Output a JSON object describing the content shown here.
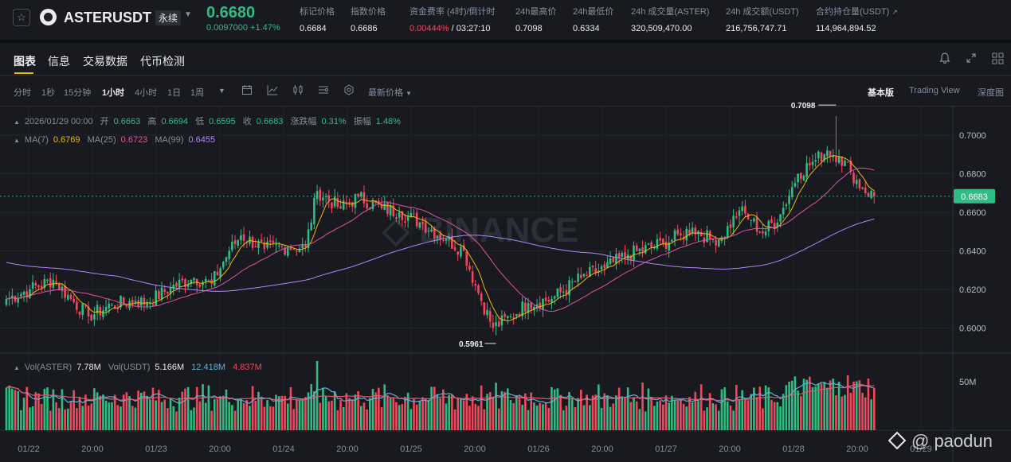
{
  "header": {
    "symbol": "ASTERUSDT",
    "contract_type": "永续",
    "last_price": "0.6680",
    "change": "0.0097000 +1.47%",
    "stats": [
      {
        "label": "标记价格",
        "value": "0.6684"
      },
      {
        "label": "指数价格",
        "value": "0.6686"
      },
      {
        "label": "资金费率 (4时)/倒计时",
        "value_red": "0.00444%",
        "value": " / 03:27:10"
      },
      {
        "label": "24h最高价",
        "value": "0.7098"
      },
      {
        "label": "24h最低价",
        "value": "0.6334"
      },
      {
        "label": "24h 成交量(ASTER)",
        "value": "320,509,470.00"
      },
      {
        "label": "24h 成交额(USDT)",
        "value": "216,756,747.71"
      },
      {
        "label": "合约持仓量(USDT)",
        "value": "114,964,894.52"
      }
    ]
  },
  "tabs": [
    "图表",
    "信息",
    "交易数据",
    "代币检测"
  ],
  "toolbar": {
    "intervals": [
      "分时",
      "1秒",
      "15分钟",
      "1小时",
      "4小时",
      "1日",
      "1周"
    ],
    "active_interval": "1小时",
    "price_type": "最新价格",
    "views": [
      "基本版",
      "Trading View",
      "深度图"
    ],
    "active_view": "基本版"
  },
  "legend": {
    "ohlc": {
      "time": "2026/01/29 00:00",
      "open_label": "开",
      "open": "0.6663",
      "high_label": "高",
      "high": "0.6694",
      "low_label": "低",
      "low": "0.6595",
      "close_label": "收",
      "close": "0.6683",
      "change_label": "涨跌幅",
      "change": "0.31%",
      "amp_label": "振幅",
      "amp": "1.48%"
    },
    "ma": [
      {
        "name": "MA(7)",
        "value": "0.6769",
        "color": "#f0b90b"
      },
      {
        "name": "MA(25)",
        "value": "0.6723",
        "color": "#e052a4"
      },
      {
        "name": "MA(99)",
        "value": "0.6455",
        "color": "#b086f8"
      }
    ],
    "vol": {
      "vol_aster_label": "Vol(ASTER)",
      "vol_aster": "7.78M",
      "vol_usdt_label": "Vol(USDT)",
      "vol_usdt": "5.166M",
      "vol_ma1": "12.418M",
      "vol_ma2": "4.837M"
    }
  },
  "chart_data": {
    "type": "candlestick",
    "interval": "1h",
    "price_axis": {
      "ticks": [
        "0.7000",
        "0.6800",
        "0.6600",
        "0.6400",
        "0.6200",
        "0.6000"
      ],
      "ylim": [
        0.587,
        0.7148
      ],
      "current_price": "0.6683"
    },
    "volume_axis": {
      "ticks": [
        "50M"
      ]
    },
    "time_axis": {
      "ticks": [
        "01/22",
        "20:00",
        "01/23",
        "20:00",
        "01/24",
        "20:00",
        "01/25",
        "20:00",
        "01/26",
        "20:00",
        "01/27",
        "20:00",
        "01/28",
        "20:00",
        "01/29"
      ]
    },
    "annotations": [
      {
        "label": "0.7098",
        "type": "max"
      },
      {
        "label": "0.5961",
        "type": "min"
      }
    ],
    "close_anchors": [
      [
        0,
        0.615
      ],
      [
        8,
        0.62
      ],
      [
        16,
        0.625
      ],
      [
        22,
        0.615
      ],
      [
        28,
        0.606
      ],
      [
        36,
        0.612
      ],
      [
        44,
        0.614
      ],
      [
        48,
        0.613
      ],
      [
        56,
        0.621
      ],
      [
        64,
        0.626
      ],
      [
        70,
        0.623
      ],
      [
        76,
        0.64
      ],
      [
        80,
        0.648
      ],
      [
        88,
        0.641
      ],
      [
        96,
        0.642
      ],
      [
        102,
        0.642
      ],
      [
        106,
        0.671
      ],
      [
        114,
        0.662
      ],
      [
        120,
        0.668
      ],
      [
        128,
        0.662
      ],
      [
        134,
        0.66
      ],
      [
        142,
        0.654
      ],
      [
        150,
        0.646
      ],
      [
        156,
        0.64
      ],
      [
        160,
        0.622
      ],
      [
        166,
        0.6
      ],
      [
        172,
        0.606
      ],
      [
        178,
        0.613
      ],
      [
        186,
        0.615
      ],
      [
        196,
        0.626
      ],
      [
        204,
        0.631
      ],
      [
        212,
        0.638
      ],
      [
        224,
        0.644
      ],
      [
        230,
        0.648
      ],
      [
        234,
        0.652
      ],
      [
        240,
        0.646
      ],
      [
        244,
        0.647
      ],
      [
        250,
        0.661
      ],
      [
        254,
        0.656
      ],
      [
        258,
        0.649
      ],
      [
        264,
        0.659
      ],
      [
        270,
        0.68
      ],
      [
        276,
        0.687
      ],
      [
        280,
        0.692
      ],
      [
        284,
        0.689
      ],
      [
        288,
        0.681
      ],
      [
        292,
        0.672
      ],
      [
        296,
        0.6683
      ]
    ],
    "volume_relative": [
      0.28,
      0.3,
      0.34,
      0.26,
      0.32
    ]
  },
  "watermark": "@ paodun",
  "colors": {
    "up": "#2ebd85",
    "down": "#f6465d",
    "bg": "#181a20",
    "accent": "#f0b90b"
  }
}
